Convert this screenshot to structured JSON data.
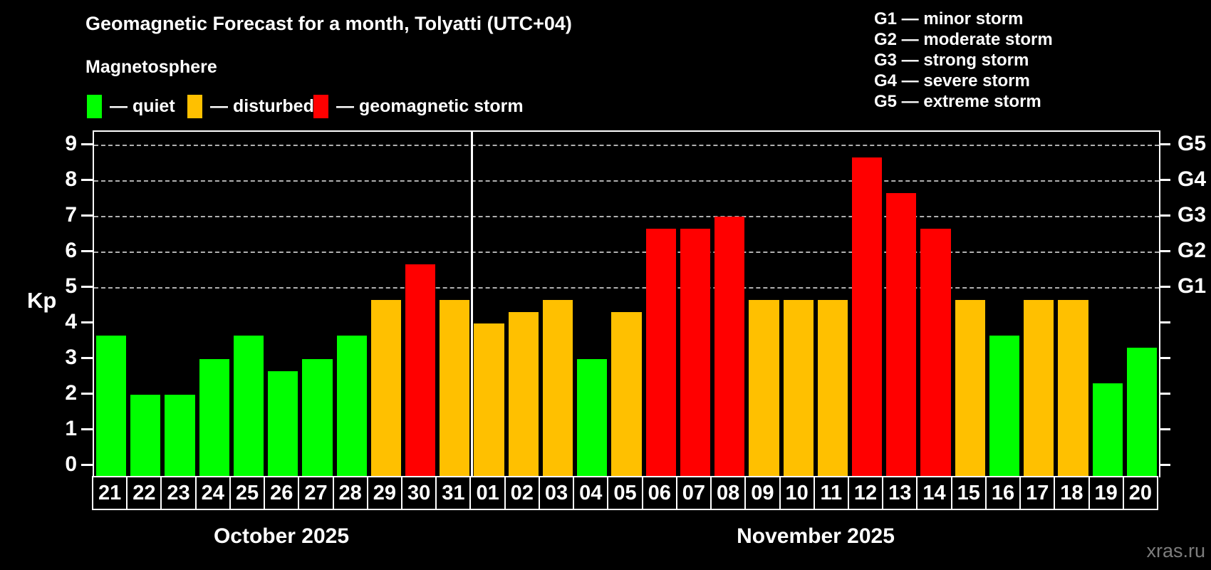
{
  "header": {
    "title": "Geomagnetic Forecast for a month, Tolyatti (UTC+04)",
    "subtitle": "Magnetosphere"
  },
  "legend": {
    "quiet_label": "— quiet",
    "disturbed_label": "— disturbed",
    "storm_label": "— geomagnetic storm"
  },
  "g_legend": [
    "G1 — minor storm",
    "G2 — moderate storm",
    "G3 — strong storm",
    "G4 — severe storm",
    "G5 — extreme storm"
  ],
  "colors": {
    "quiet": "#00ff00",
    "disturbed": "#ffc000",
    "storm": "#ff0000",
    "background": "#000000",
    "grid": "#b0b0b0",
    "axis": "#ffffff",
    "watermark": "#7d7d7d"
  },
  "axes": {
    "y_label": "Kp",
    "left_ticks": [
      "0",
      "1",
      "2",
      "3",
      "4",
      "5",
      "6",
      "7",
      "8",
      "9"
    ],
    "right_labels": {
      "5": "G1",
      "6": "G2",
      "7": "G3",
      "8": "G4",
      "9": "G5"
    },
    "grid_levels": [
      5,
      6,
      7,
      8,
      9
    ]
  },
  "months": [
    {
      "label": "October 2025",
      "days": [
        "21",
        "22",
        "23",
        "24",
        "25",
        "26",
        "27",
        "28",
        "29",
        "30",
        "31"
      ]
    },
    {
      "label": "November 2025",
      "days": [
        "01",
        "02",
        "03",
        "04",
        "05",
        "06",
        "07",
        "08",
        "09",
        "10",
        "11",
        "12",
        "13",
        "14",
        "15",
        "16",
        "17",
        "18",
        "19",
        "20"
      ]
    }
  ],
  "watermark": "xras.ru",
  "chart_data": {
    "type": "bar",
    "title": "Geomagnetic Forecast for a month, Tolyatti (UTC+04)",
    "subtitle": "Magnetosphere",
    "xlabel": "",
    "ylabel": "Kp",
    "ylim": [
      0,
      9.4
    ],
    "grid": "horizontal dashed lines at Kp 5,6,7,8,9 (G1–G5 levels)",
    "legend_position": "top",
    "categories": [
      "Oct 21",
      "Oct 22",
      "Oct 23",
      "Oct 24",
      "Oct 25",
      "Oct 26",
      "Oct 27",
      "Oct 28",
      "Oct 29",
      "Oct 30",
      "Oct 31",
      "Nov 01",
      "Nov 02",
      "Nov 03",
      "Nov 04",
      "Nov 05",
      "Nov 06",
      "Nov 07",
      "Nov 08",
      "Nov 09",
      "Nov 10",
      "Nov 11",
      "Nov 12",
      "Nov 13",
      "Nov 14",
      "Nov 15",
      "Nov 16",
      "Nov 17",
      "Nov 18",
      "Nov 19",
      "Nov 20"
    ],
    "values": [
      3.67,
      2,
      2,
      3,
      3.67,
      2.67,
      3,
      3.67,
      4.67,
      5.67,
      4.67,
      4,
      4.33,
      4.67,
      3,
      4.33,
      6.67,
      6.67,
      7,
      4.67,
      4.67,
      4.67,
      8.67,
      7.67,
      6.67,
      4.67,
      3.67,
      4.67,
      4.67,
      2.33,
      3.33
    ],
    "statuses": [
      "quiet",
      "quiet",
      "quiet",
      "quiet",
      "quiet",
      "quiet",
      "quiet",
      "quiet",
      "disturbed",
      "storm",
      "disturbed",
      "disturbed",
      "disturbed",
      "disturbed",
      "quiet",
      "disturbed",
      "storm",
      "storm",
      "storm",
      "disturbed",
      "disturbed",
      "disturbed",
      "storm",
      "storm",
      "storm",
      "disturbed",
      "quiet",
      "disturbed",
      "disturbed",
      "quiet",
      "quiet"
    ],
    "color_rule": {
      "disturbed_at_or_above": 4,
      "storm_at_or_above": 5
    }
  }
}
